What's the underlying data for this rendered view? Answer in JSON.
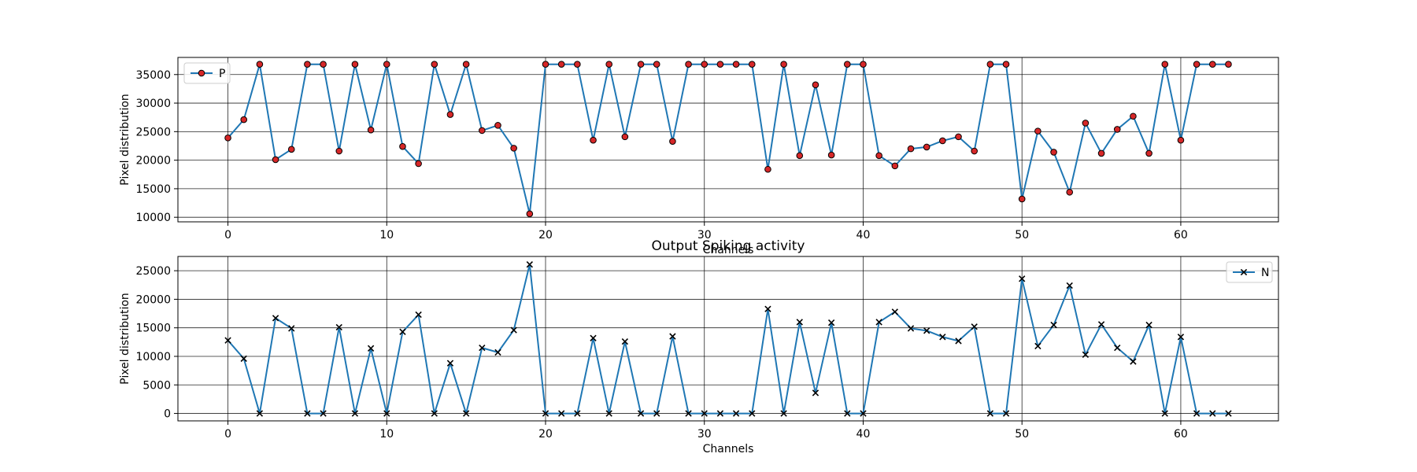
{
  "chart_data": [
    {
      "type": "line",
      "title": "",
      "xlabel": "Channels",
      "ylabel": "Pixel distribution",
      "xlim": [
        -3.15,
        66.15
      ],
      "ylim": [
        9200,
        38000
      ],
      "xticks": [
        0,
        10,
        20,
        30,
        40,
        50,
        60
      ],
      "yticks": [
        10000,
        15000,
        20000,
        25000,
        30000,
        35000
      ],
      "grid": true,
      "legend_position": "upper-left",
      "series": [
        {
          "name": "P",
          "color": "#1f77b4",
          "marker": "circle",
          "marker_color": "#d62728",
          "x": [
            0,
            1,
            2,
            3,
            4,
            5,
            6,
            7,
            8,
            9,
            10,
            11,
            12,
            13,
            14,
            15,
            16,
            17,
            18,
            19,
            20,
            21,
            22,
            23,
            24,
            25,
            26,
            27,
            28,
            29,
            30,
            31,
            32,
            33,
            34,
            35,
            36,
            37,
            38,
            39,
            40,
            41,
            42,
            43,
            44,
            45,
            46,
            47,
            48,
            49,
            50,
            51,
            52,
            53,
            54,
            55,
            56,
            57,
            58,
            59,
            60,
            61,
            62,
            63
          ],
          "values": [
            23900,
            27100,
            36800,
            20100,
            21900,
            36800,
            36800,
            21600,
            36800,
            25300,
            36800,
            22400,
            19400,
            36800,
            28000,
            36800,
            25200,
            26100,
            22100,
            10600,
            36800,
            36800,
            36800,
            23500,
            36800,
            24100,
            36800,
            36800,
            23300,
            36800,
            36800,
            36800,
            36800,
            36800,
            18400,
            36800,
            20800,
            33200,
            20900,
            36800,
            36800,
            20800,
            19000,
            22000,
            22300,
            23400,
            24100,
            21600,
            36800,
            36800,
            13200,
            25100,
            21400,
            14400,
            26500,
            21200,
            25400,
            27700,
            21200,
            36800,
            23500,
            36800,
            36800,
            36800
          ]
        }
      ]
    },
    {
      "type": "line",
      "title": "Output Spiking activity",
      "xlabel": "Channels",
      "ylabel": "Pixel distribution",
      "xlim": [
        -3.15,
        66.15
      ],
      "ylim": [
        -1300,
        27500
      ],
      "xticks": [
        0,
        10,
        20,
        30,
        40,
        50,
        60
      ],
      "yticks": [
        0,
        5000,
        10000,
        15000,
        20000,
        25000
      ],
      "grid": true,
      "legend_position": "upper-right",
      "series": [
        {
          "name": "N",
          "color": "#1f77b4",
          "marker": "x",
          "marker_color": "#000000",
          "x": [
            0,
            1,
            2,
            3,
            4,
            5,
            6,
            7,
            8,
            9,
            10,
            11,
            12,
            13,
            14,
            15,
            16,
            17,
            18,
            19,
            20,
            21,
            22,
            23,
            24,
            25,
            26,
            27,
            28,
            29,
            30,
            31,
            32,
            33,
            34,
            35,
            36,
            37,
            38,
            39,
            40,
            41,
            42,
            43,
            44,
            45,
            46,
            47,
            48,
            49,
            50,
            51,
            52,
            53,
            54,
            55,
            56,
            57,
            58,
            59,
            60,
            61,
            62,
            63
          ],
          "values": [
            12800,
            9600,
            0,
            16700,
            14900,
            0,
            0,
            15100,
            0,
            11400,
            0,
            14300,
            17300,
            0,
            8800,
            0,
            11500,
            10700,
            14600,
            26100,
            0,
            0,
            0,
            13200,
            0,
            12600,
            0,
            0,
            13500,
            0,
            0,
            0,
            0,
            0,
            18300,
            0,
            16000,
            3600,
            15900,
            0,
            0,
            16000,
            17800,
            14900,
            14500,
            13400,
            12700,
            15200,
            0,
            0,
            23600,
            11800,
            15500,
            22400,
            10300,
            15600,
            11500,
            9100,
            15500,
            0,
            13400,
            0,
            0,
            0
          ]
        }
      ]
    }
  ]
}
